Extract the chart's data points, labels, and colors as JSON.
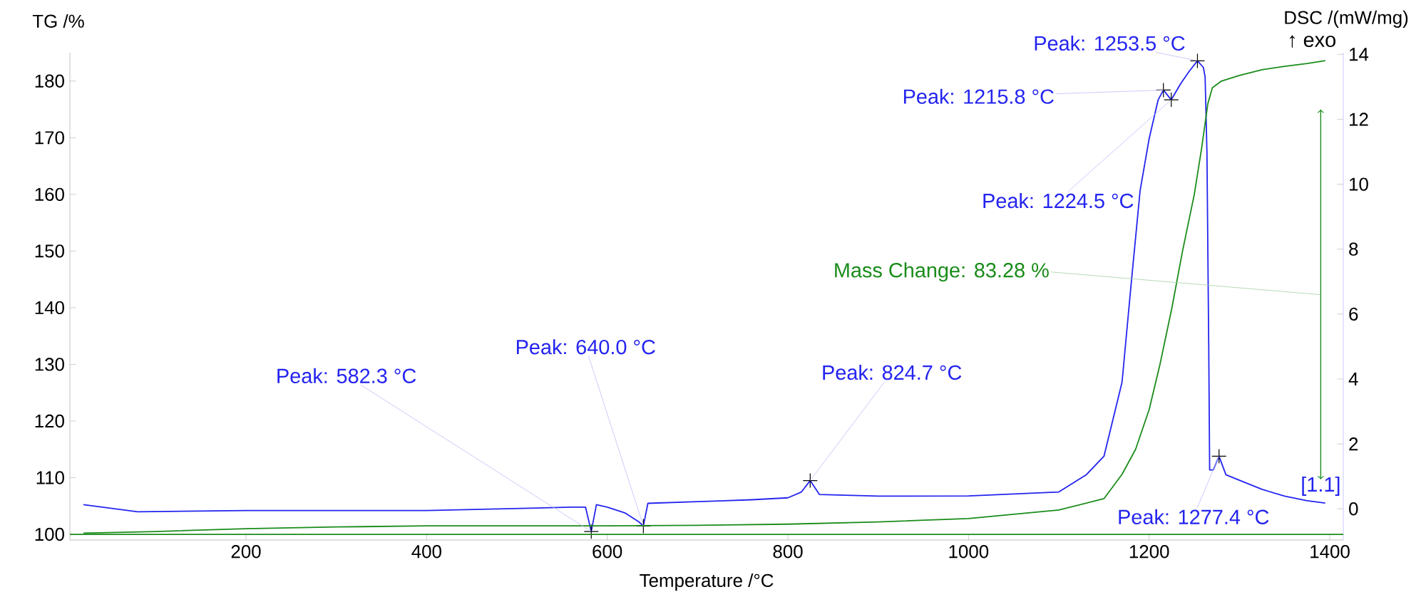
{
  "chart_data": {
    "type": "line",
    "xlabel": "Temperature /°C",
    "ylabel": "TG /%",
    "y2label": "DSC /(mW/mg)",
    "xlim": [
      5,
      1415
    ],
    "xticks": [
      200,
      400,
      600,
      800,
      1000,
      1200,
      1400
    ],
    "ylim": [
      99,
      185
    ],
    "yticks": [
      100,
      110,
      120,
      130,
      140,
      150,
      160,
      170,
      180
    ],
    "y2lim": [
      -0.96,
      14.05
    ],
    "y2ticks": [
      0,
      2,
      4,
      6,
      8,
      10,
      12,
      14
    ],
    "series": [
      {
        "type": "line",
        "axis": "y",
        "color": "#1a8c1a",
        "x": [
          20,
          100,
          200,
          300,
          400,
          500,
          600,
          700,
          800,
          900,
          1000,
          1100,
          1150,
          1170,
          1185,
          1200,
          1212,
          1225,
          1237,
          1250,
          1258,
          1265,
          1270,
          1280,
          1300,
          1325,
          1350,
          1375,
          1395
        ],
        "values": [
          100.2,
          100.5,
          101.0,
          101.3,
          101.5,
          101.5,
          101.5,
          101.6,
          101.8,
          102.2,
          102.8,
          104.3,
          106.3,
          110.6,
          115,
          122,
          130,
          139.8,
          150,
          160,
          168,
          176,
          178.8,
          180,
          181,
          182,
          182.6,
          183.1,
          183.6
        ]
      },
      {
        "type": "line",
        "axis": "y2",
        "color": "#2424f0",
        "x": [
          20,
          80,
          200,
          400,
          560,
          576,
          582.3,
          588,
          600,
          620,
          635,
          640,
          645,
          700,
          760,
          800,
          815,
          824.7,
          835,
          900,
          1000,
          1100,
          1130,
          1150,
          1170,
          1180,
          1190,
          1200,
          1210,
          1215.8,
          1224.5,
          1235,
          1245,
          1253.5,
          1260,
          1262,
          1264,
          1266,
          1267,
          1271,
          1277.4,
          1285,
          1300,
          1325,
          1350,
          1375,
          1395
        ],
        "values": [
          0.13,
          -0.09,
          -0.05,
          -0.05,
          0.05,
          0.05,
          -0.7,
          0.13,
          0.05,
          -0.13,
          -0.4,
          -0.53,
          0.17,
          0.22,
          0.28,
          0.34,
          0.52,
          0.87,
          0.44,
          0.39,
          0.4,
          0.52,
          1.04,
          1.62,
          3.9,
          6.9,
          9.8,
          11.4,
          12.6,
          12.9,
          12.6,
          13.1,
          13.5,
          13.8,
          13.6,
          13.3,
          11,
          5,
          1.2,
          1.2,
          1.62,
          1.05,
          0.88,
          0.6,
          0.39,
          0.25,
          0.18
        ]
      },
      {
        "type": "scatter",
        "axis": "y2",
        "color": "#000000",
        "marker": "cross",
        "x": [
          582.3,
          640.0,
          824.7,
          1215.8,
          1224.5,
          1253.5,
          1277.4
        ],
        "values": [
          -0.7,
          -0.53,
          0.87,
          12.9,
          12.6,
          13.8,
          1.62
        ]
      }
    ],
    "ref_lines": [
      {
        "axis": "y",
        "value": 100,
        "color": "#1a8c1a"
      }
    ],
    "annotations": [
      {
        "text": "Peak: 582.3 °C",
        "x": 582.3,
        "y": 100.5
      },
      {
        "text": "Peak: 640.0 °C",
        "x": 640.0,
        "y": 101.5
      },
      {
        "text": "Peak: 824.7 °C",
        "x": 824.7,
        "y": 109.5
      },
      {
        "text": "Peak: 1215.8 °C",
        "x": 1215.8,
        "y": 178.4
      },
      {
        "text": "Peak: 1224.5 °C",
        "x": 1224.5,
        "y": 176.7
      },
      {
        "text": "Peak: 1253.5 °C",
        "x": 1253.5,
        "y": 183.6
      },
      {
        "text": "Peak: 1277.4 °C",
        "x": 1277.4,
        "y": 113.8
      },
      "Mass Change: 83.28 %",
      "↑ exo",
      "[1.1]"
    ]
  }
}
